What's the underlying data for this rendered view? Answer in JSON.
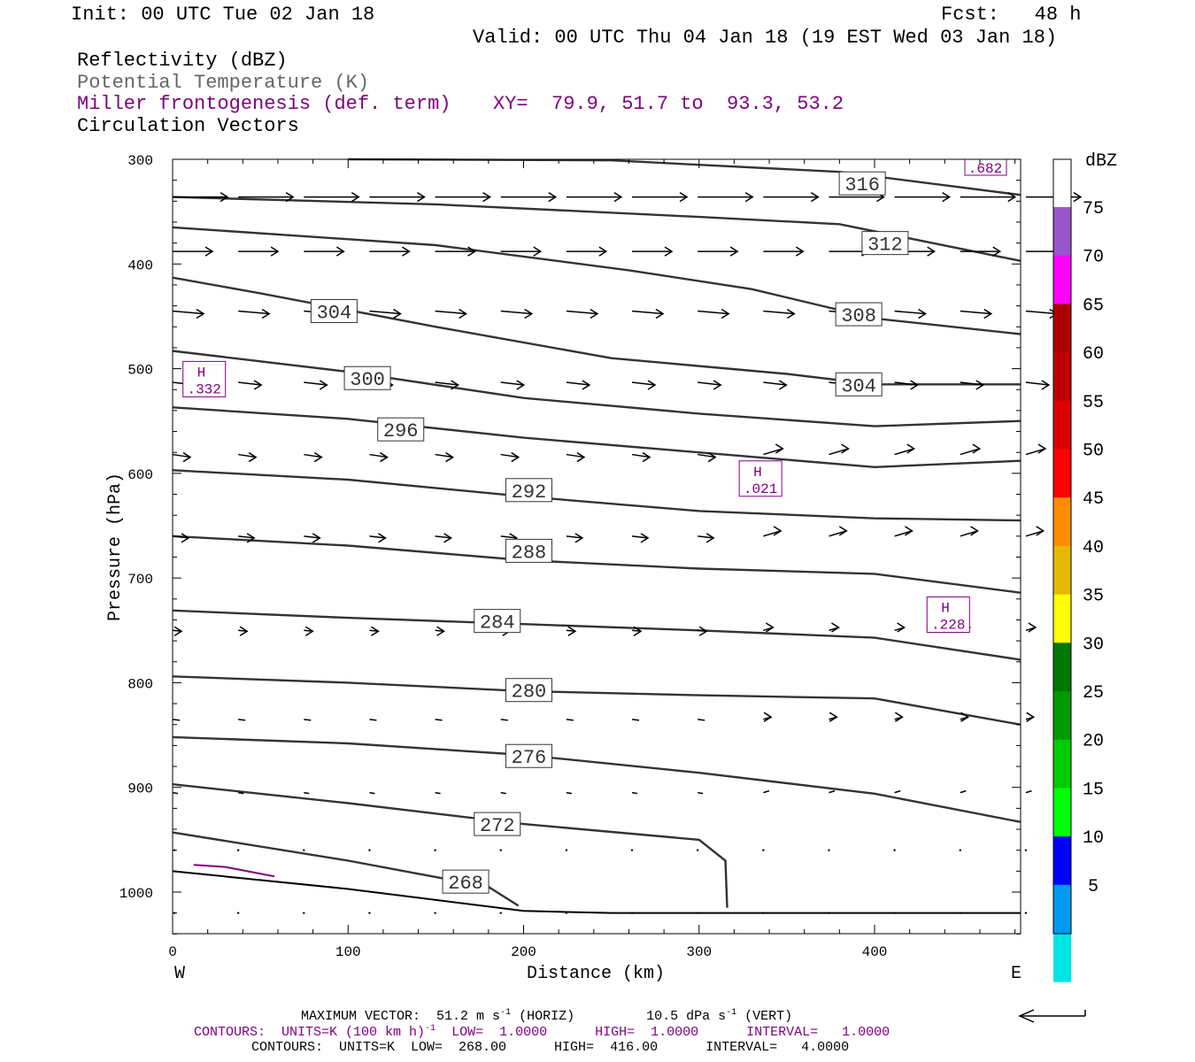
{
  "header": {
    "init": "Init: 00 UTC Tue 02 Jan 18",
    "fcst": "Fcst:   48 h",
    "valid": "Valid: 00 UTC Thu 04 Jan 18 (19 EST Wed 03 Jan 18)",
    "fields": [
      "Reflectivity (dBZ)",
      "Potential Temperature (K)",
      "Miller frontogenesis (def. term)",
      "Circulation Vectors"
    ],
    "xy": "XY=  79.9, 51.7 to  93.3, 53.2"
  },
  "chart_data": {
    "type": "cross-section",
    "ylabel": "Pressure (hPa)",
    "xlabel": "Distance (km)",
    "xlim": [
      0,
      483
    ],
    "ylim": [
      1040,
      300
    ],
    "x_ticks": [
      0,
      100,
      200,
      300,
      400
    ],
    "y_ticks": [
      300,
      400,
      500,
      600,
      700,
      800,
      900,
      1000
    ],
    "west_label": "W",
    "east_label": "E",
    "theta_contours": [
      {
        "label": "316",
        "points": [
          [
            100,
            300
          ],
          [
            250,
            301
          ],
          [
            380,
            312
          ],
          [
            483,
            334
          ]
        ]
      },
      {
        "label": "312",
        "points": [
          [
            0,
            336
          ],
          [
            150,
            343
          ],
          [
            300,
            355
          ],
          [
            380,
            362
          ],
          [
            483,
            397
          ]
        ]
      },
      {
        "label": "308",
        "points": [
          [
            0,
            365
          ],
          [
            150,
            382
          ],
          [
            260,
            406
          ],
          [
            330,
            424
          ],
          [
            400,
            452
          ],
          [
            483,
            467
          ]
        ]
      },
      {
        "label": "304",
        "points": [
          [
            0,
            413
          ],
          [
            50,
            428
          ],
          [
            150,
            460
          ],
          [
            250,
            490
          ],
          [
            350,
            505
          ],
          [
            400,
            515
          ],
          [
            483,
            515
          ]
        ]
      },
      {
        "label": "300",
        "points": [
          [
            0,
            483
          ],
          [
            100,
            503
          ],
          [
            200,
            528
          ],
          [
            300,
            543
          ],
          [
            400,
            555
          ],
          [
            483,
            550
          ]
        ]
      },
      {
        "label": "296",
        "points": [
          [
            0,
            537
          ],
          [
            100,
            548
          ],
          [
            200,
            566
          ],
          [
            300,
            580
          ],
          [
            400,
            594
          ],
          [
            483,
            588
          ]
        ]
      },
      {
        "label": "292",
        "points": [
          [
            0,
            597
          ],
          [
            100,
            606
          ],
          [
            200,
            622
          ],
          [
            300,
            636
          ],
          [
            400,
            643
          ],
          [
            483,
            645
          ]
        ]
      },
      {
        "label": "288",
        "points": [
          [
            0,
            660
          ],
          [
            100,
            669
          ],
          [
            200,
            683
          ],
          [
            300,
            691
          ],
          [
            400,
            696
          ],
          [
            483,
            714
          ]
        ]
      },
      {
        "label": "284",
        "points": [
          [
            0,
            731
          ],
          [
            100,
            738
          ],
          [
            200,
            744
          ],
          [
            300,
            750
          ],
          [
            400,
            757
          ],
          [
            483,
            778
          ]
        ]
      },
      {
        "label": "280",
        "points": [
          [
            0,
            794
          ],
          [
            100,
            800
          ],
          [
            200,
            808
          ],
          [
            300,
            812
          ],
          [
            400,
            815
          ],
          [
            483,
            840
          ]
        ]
      },
      {
        "label": "276",
        "points": [
          [
            0,
            852
          ],
          [
            100,
            858
          ],
          [
            200,
            869
          ],
          [
            300,
            886
          ],
          [
            400,
            906
          ],
          [
            483,
            933
          ]
        ]
      },
      {
        "label": "272",
        "points": [
          [
            0,
            897
          ],
          [
            100,
            915
          ],
          [
            200,
            935
          ],
          [
            300,
            950
          ],
          [
            315,
            970
          ],
          [
            316,
            1015
          ]
        ]
      },
      {
        "label": "268",
        "points": [
          [
            0,
            943
          ],
          [
            100,
            970
          ],
          [
            180,
            995
          ],
          [
            197,
            1013
          ]
        ]
      }
    ],
    "contour_labels": [
      {
        "text": "316",
        "x": 393,
        "p": 323
      },
      {
        "text": "312",
        "x": 406,
        "p": 380
      },
      {
        "text": "308",
        "x": 391,
        "p": 448
      },
      {
        "text": "304",
        "x": 92,
        "p": 445
      },
      {
        "text": "304",
        "x": 391,
        "p": 515
      },
      {
        "text": "300",
        "x": 111,
        "p": 509
      },
      {
        "text": "296",
        "x": 130,
        "p": 558
      },
      {
        "text": "292",
        "x": 203,
        "p": 616
      },
      {
        "text": "288",
        "x": 203,
        "p": 674
      },
      {
        "text": "284",
        "x": 185,
        "p": 741
      },
      {
        "text": "280",
        "x": 203,
        "p": 807
      },
      {
        "text": "276",
        "x": 203,
        "p": 870
      },
      {
        "text": "272",
        "x": 185,
        "p": 935
      },
      {
        "text": "268",
        "x": 167,
        "p": 990
      }
    ],
    "frontogenesis_highs": [
      {
        "h": "H",
        "value": ".332",
        "x": 18,
        "p": 510
      },
      {
        "h": "H",
        "value": ".021",
        "x": 335,
        "p": 605
      },
      {
        "h": "H",
        "value": ".228",
        "x": 442,
        "p": 735
      }
    ],
    "frontogenesis_corner_label": ".682",
    "vectors": [
      {
        "p": 335,
        "x0": 0,
        "y0": 336,
        "dx": 30,
        "dy": 0
      },
      {
        "p": 388,
        "x0": 0,
        "y0": 388,
        "dx": 20,
        "dy": 0
      },
      {
        "p": 445,
        "x0": 0,
        "y0": 445,
        "dx": 16,
        "dy": 2
      },
      {
        "p": 513,
        "x0": 0,
        "y0": 513,
        "dx": 14,
        "dy": 3
      },
      {
        "p": 582,
        "x0": 0,
        "y0": 582,
        "dx": 10,
        "dy": 3
      },
      {
        "p": 660,
        "x0": 0,
        "y0": 660,
        "dx": 10,
        "dy": 2
      },
      {
        "p": 750,
        "x0": 0,
        "y0": 750,
        "dx": 6,
        "dy": 1
      },
      {
        "p": 835,
        "x0": 0,
        "y0": 835,
        "dx": 4,
        "dy": 1
      },
      {
        "p": 905,
        "x0": 0,
        "y0": 905,
        "dx": 3,
        "dy": 1
      }
    ],
    "colorbar": {
      "unit": "dBZ",
      "labels": [
        "5",
        "10",
        "15",
        "20",
        "25",
        "30",
        "35",
        "40",
        "45",
        "50",
        "55",
        "60",
        "65",
        "70",
        "75"
      ],
      "colors": [
        "#ffffff",
        "#00e5e5",
        "#0099ee",
        "#0000ff",
        "#00ff00",
        "#00cc00",
        "#009900",
        "#007700",
        "#ffff00",
        "#e6b800",
        "#ff8c00",
        "#ff0000",
        "#dd0000",
        "#c00000",
        "#aa0000",
        "#ff00ff",
        "#9955cc",
        "#ffffff"
      ]
    }
  },
  "footer": {
    "max_vector": "MAXIMUM VECTOR:  51.2 m s",
    "max_vector_sup1": "-1",
    "max_vector_mid": " (HORIZ)         10.5 dPa s",
    "max_vector_sup2": "-1",
    "max_vector_end": " (VERT)",
    "contours1": "CONTOURS:  UNITS=K (100 km h)",
    "contours1_sup": "-1",
    "contours1_end": "  LOW=  1.0000      HIGH=  1.0000      INTERVAL=   1.0000",
    "contours2": "CONTOURS:  UNITS=K  LOW=  268.00      HIGH=  416.00      INTERVAL=   4.0000"
  }
}
